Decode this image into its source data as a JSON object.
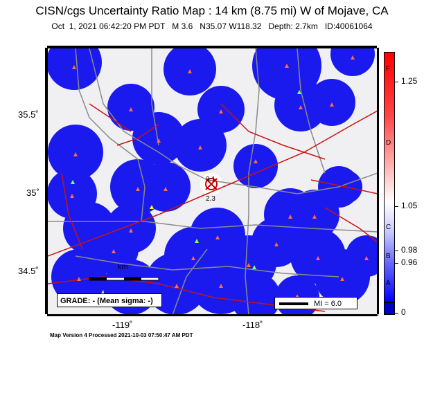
{
  "title": "CISN/cgs Uncertainty Ratio Map : 14 km (8.75 mi) W of Mojave, CA",
  "subtitle": "Oct  1, 2021 06:42:20 PM PDT   M 3.6   N35.07 W118.32   Depth: 2.7km   ID:40061064",
  "axes": {
    "x_ticks": [
      "-119˚",
      "-118˚"
    ],
    "y_ticks": [
      "35.5˚",
      "35˚",
      "34.5˚"
    ]
  },
  "colorbar": {
    "letters": [
      "F",
      "D",
      "C",
      "B",
      "A"
    ],
    "values": [
      "1.25",
      "1.05",
      "0.98",
      "0.96",
      "0"
    ],
    "colors": {
      "top": "#ff0000",
      "mid": "#ffffff",
      "low": "#0000ff",
      "base": "#0000c8"
    }
  },
  "map": {
    "epicenter_labels": [
      "3.1",
      "2.3"
    ],
    "colors": {
      "coverage": "#1010e0",
      "background": "#f0f0f3",
      "faults": "#cc1111",
      "roads": "#909090",
      "stations": "#ff6a4a"
    }
  },
  "grade": "GRADE: - (Mean sigma: -)",
  "scale_label": "km",
  "mi_label": "MI = 6.0",
  "footer": "Map Version 4 Processed 2021-10-03 07:50:47 AM PDT"
}
